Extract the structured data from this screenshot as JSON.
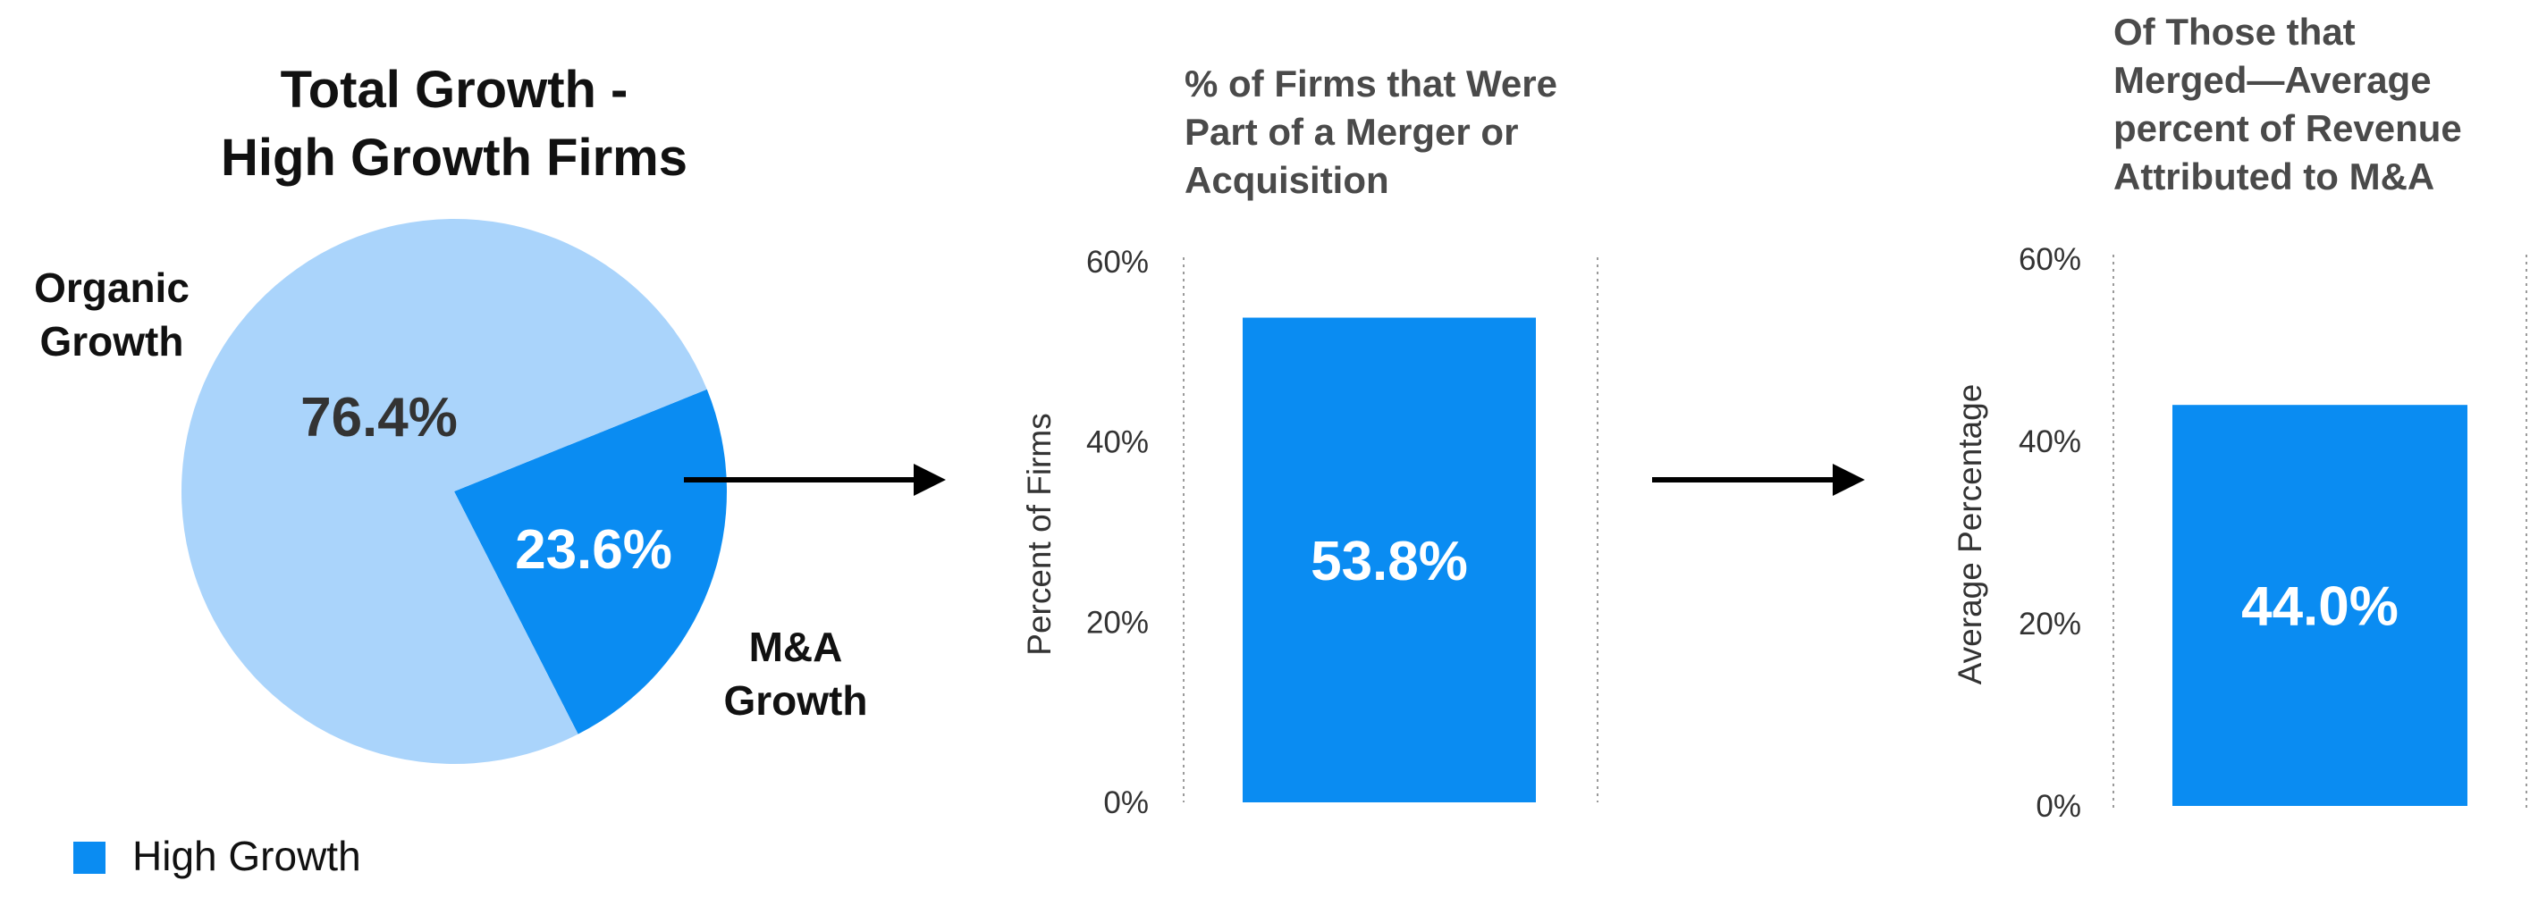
{
  "colors": {
    "organic": "#aad4fb",
    "ma": "#0a8cf2",
    "bar": "#0a8cf2",
    "arrow": "#000000",
    "white": "#ffffff"
  },
  "arrow_icons": [
    "arrow-right-icon",
    "arrow-right-icon"
  ],
  "chart_data": [
    {
      "type": "pie",
      "title_lines": [
        "Total Growth -",
        "High Growth Firms"
      ],
      "slices": [
        {
          "label_lines": [
            "Organic",
            "Growth"
          ],
          "value": 76.4,
          "value_label": "76.4%",
          "color": "#aad4fb"
        },
        {
          "label_lines": [
            "M&A",
            "Growth"
          ],
          "value": 23.6,
          "value_label": "23.6%",
          "color": "#0a8cf2"
        }
      ],
      "legend": {
        "label": "High Growth",
        "color": "#0a8cf2",
        "position": "bottom-left"
      }
    },
    {
      "type": "bar",
      "title_lines": [
        "% of Firms that Were",
        "Part of a Merger or",
        "Acquisition"
      ],
      "ylabel": "Percent of Firms",
      "ylim": [
        0,
        60
      ],
      "yticks": [
        {
          "value": 0,
          "label": "0%"
        },
        {
          "value": 20,
          "label": "20%"
        },
        {
          "value": 40,
          "label": "40%"
        },
        {
          "value": 60,
          "label": "60%"
        }
      ],
      "values": [
        53.8
      ],
      "data_labels": [
        "53.8%"
      ],
      "grid": "vertical dotted"
    },
    {
      "type": "bar",
      "title_lines": [
        "Of Those that",
        "Merged—Average",
        "percent of Revenue",
        "Attributed to M&A"
      ],
      "ylabel": "Average Percentage",
      "ylim": [
        0,
        60
      ],
      "yticks": [
        {
          "value": 0,
          "label": "0%"
        },
        {
          "value": 20,
          "label": "20%"
        },
        {
          "value": 40,
          "label": "40%"
        },
        {
          "value": 60,
          "label": "60%"
        }
      ],
      "values": [
        44.0
      ],
      "data_labels": [
        "44.0%"
      ],
      "grid": "vertical dotted"
    }
  ]
}
